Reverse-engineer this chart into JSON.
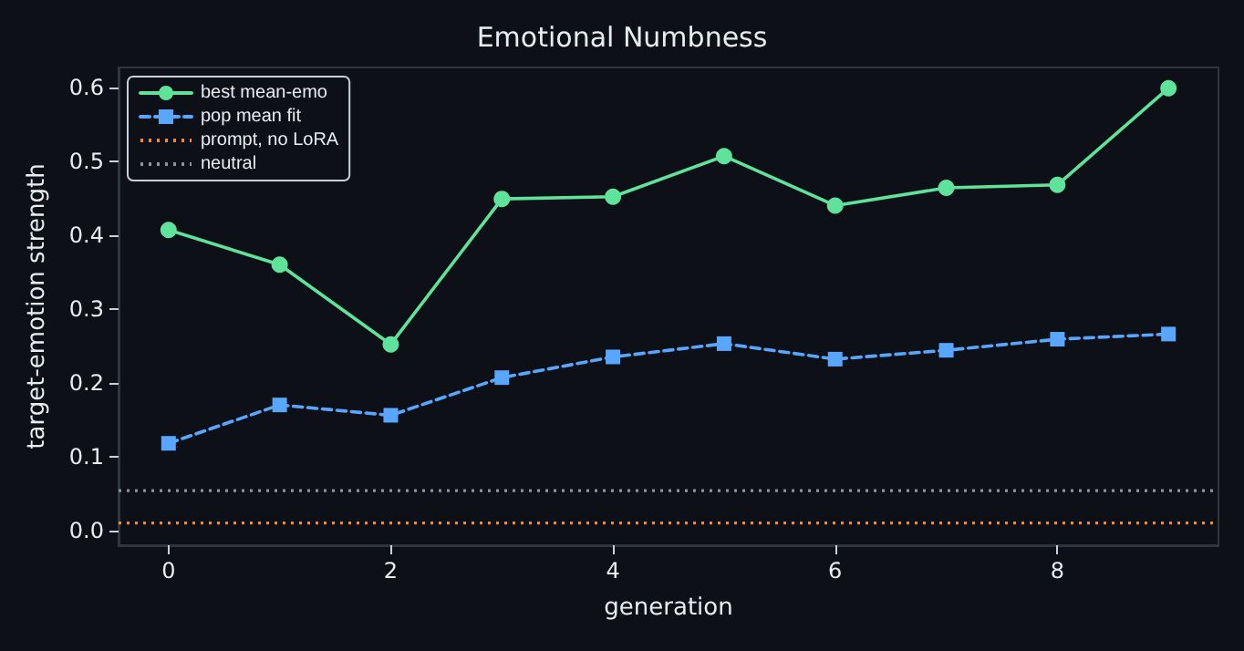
{
  "chart_data": {
    "type": "line",
    "title": "Emotional Numbness",
    "xlabel": "generation",
    "ylabel": "target-emotion strength",
    "x": [
      0,
      1,
      2,
      3,
      4,
      5,
      6,
      7,
      8,
      9
    ],
    "series": [
      {
        "name": "best mean-emo",
        "color": "#5fe29a",
        "marker": "circle",
        "line_style": "solid",
        "values": [
          0.407,
          0.36,
          0.252,
          0.449,
          0.452,
          0.507,
          0.44,
          0.464,
          0.468,
          0.599
        ]
      },
      {
        "name": "pop mean fit",
        "color": "#58a6ff",
        "marker": "square",
        "line_style": "dashed",
        "values": [
          0.118,
          0.17,
          0.156,
          0.207,
          0.235,
          0.253,
          0.232,
          0.244,
          0.259,
          0.266
        ]
      }
    ],
    "ref_lines": [
      {
        "axis": "y",
        "value": 0.01,
        "label": "prompt, no LoRA",
        "color": "#f0883e",
        "line_style": "dotted"
      },
      {
        "axis": "y",
        "value": 0.054,
        "label": "neutral",
        "color": "#8b949e",
        "line_style": "dotted"
      }
    ],
    "xlim": [
      -0.45,
      9.45
    ],
    "xticks": [
      0,
      2,
      4,
      6,
      8
    ],
    "ylim": [
      -0.02,
      0.627
    ],
    "yticks": [
      {
        "value": 0,
        "label": "0.0"
      },
      0.1,
      0.2,
      0.3,
      0.4,
      0.5,
      0.6
    ],
    "grid": false,
    "legend": "top left"
  }
}
